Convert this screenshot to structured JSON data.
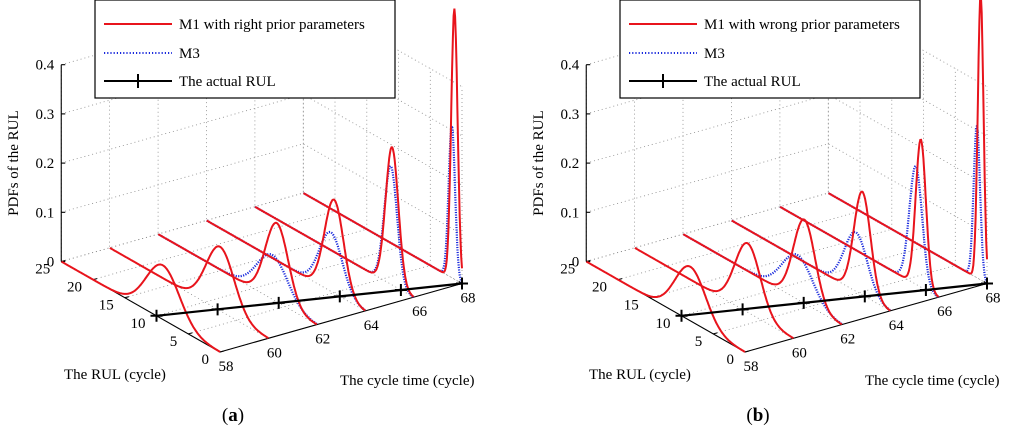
{
  "chart_data": [
    {
      "type": "line",
      "panel_label": "a",
      "xlabel": "The cycle time (cycle)",
      "ylabel": "The RUL (cycle)",
      "zlabel": "PDFs of the RUL",
      "x_ticks": [
        "58",
        "60",
        "62",
        "64",
        "66",
        "68"
      ],
      "y_ticks": [
        "0",
        "5",
        "10",
        "15",
        "20",
        "25"
      ],
      "z_ticks": [
        "0",
        "0.1",
        "0.2",
        "0.3",
        "0.4"
      ],
      "xlim": [
        58,
        68
      ],
      "ylim": [
        0,
        25
      ],
      "zlim": [
        0,
        0.4
      ],
      "legend": {
        "position": "top",
        "entries": [
          "M1 with right prior parameters",
          "M3",
          "The actual RUL"
        ]
      },
      "colors": {
        "m1": "#e8141c",
        "m3": "#1a2adc",
        "actual": "#000000"
      },
      "series": [
        {
          "name": "M1 with right prior parameters",
          "style": "solid",
          "curves": [
            {
              "t": 58,
              "mean": 9.0,
              "sd": 2.6,
              "peak": 0.11
            },
            {
              "t": 60,
              "mean": 7.6,
              "sd": 2.2,
              "peak": 0.13
            },
            {
              "t": 62,
              "mean": 6.3,
              "sd": 1.8,
              "peak": 0.16
            },
            {
              "t": 64,
              "mean": 4.9,
              "sd": 1.5,
              "peak": 0.19
            },
            {
              "t": 66,
              "mean": 3.4,
              "sd": 1.0,
              "peak": 0.28
            },
            {
              "t": 68,
              "mean": 1.2,
              "sd": 0.5,
              "peak": 0.55
            }
          ]
        },
        {
          "name": "M3",
          "style": "dotted",
          "curves": [
            {
              "t": 62,
              "mean": 7.0,
              "sd": 2.4,
              "peak": 0.09
            },
            {
              "t": 64,
              "mean": 5.4,
              "sd": 1.8,
              "peak": 0.12
            },
            {
              "t": 66,
              "mean": 3.6,
              "sd": 1.0,
              "peak": 0.24
            },
            {
              "t": 68,
              "mean": 1.6,
              "sd": 0.5,
              "peak": 0.31
            }
          ]
        },
        {
          "name": "The actual RUL",
          "style": "solid-plus",
          "points": [
            {
              "t": 58,
              "rul": 10
            },
            {
              "t": 60,
              "rul": 8
            },
            {
              "t": 62,
              "rul": 6
            },
            {
              "t": 64,
              "rul": 4
            },
            {
              "t": 66,
              "rul": 2
            },
            {
              "t": 68,
              "rul": 0
            }
          ]
        }
      ]
    },
    {
      "type": "line",
      "panel_label": "b",
      "xlabel": "The cycle time (cycle)",
      "ylabel": "The RUL (cycle)",
      "zlabel": "PDFs of the RUL",
      "x_ticks": [
        "58",
        "60",
        "62",
        "64",
        "66",
        "68"
      ],
      "y_ticks": [
        "0",
        "5",
        "10",
        "15",
        "20",
        "25"
      ],
      "z_ticks": [
        "0",
        "0.1",
        "0.2",
        "0.3",
        "0.4"
      ],
      "xlim": [
        58,
        68
      ],
      "ylim": [
        0,
        25
      ],
      "zlim": [
        0,
        0.4
      ],
      "legend": {
        "position": "top",
        "entries": [
          "M1 with wrong prior parameters",
          "M3",
          "The actual RUL"
        ]
      },
      "colors": {
        "m1": "#e8141c",
        "m3": "#1a2adc",
        "actual": "#000000"
      },
      "series": [
        {
          "name": "M1 with wrong prior parameters",
          "style": "solid",
          "curves": [
            {
              "t": 58,
              "mean": 8.6,
              "sd": 2.4,
              "peak": 0.11
            },
            {
              "t": 60,
              "mean": 7.2,
              "sd": 2.0,
              "peak": 0.14
            },
            {
              "t": 62,
              "mean": 5.9,
              "sd": 1.7,
              "peak": 0.17
            },
            {
              "t": 64,
              "mean": 4.4,
              "sd": 1.3,
              "peak": 0.21
            },
            {
              "t": 66,
              "mean": 2.8,
              "sd": 0.8,
              "peak": 0.3
            },
            {
              "t": 68,
              "mean": 1.0,
              "sd": 0.45,
              "peak": 0.58
            }
          ]
        },
        {
          "name": "M3",
          "style": "dotted",
          "curves": [
            {
              "t": 62,
              "mean": 7.0,
              "sd": 2.4,
              "peak": 0.09
            },
            {
              "t": 64,
              "mean": 5.4,
              "sd": 1.8,
              "peak": 0.12
            },
            {
              "t": 66,
              "mean": 3.6,
              "sd": 1.0,
              "peak": 0.24
            },
            {
              "t": 68,
              "mean": 1.6,
              "sd": 0.5,
              "peak": 0.31
            }
          ]
        },
        {
          "name": "The actual RUL",
          "style": "solid-plus",
          "points": [
            {
              "t": 58,
              "rul": 10
            },
            {
              "t": 60,
              "rul": 8
            },
            {
              "t": 62,
              "rul": 6
            },
            {
              "t": 64,
              "rul": 4
            },
            {
              "t": 66,
              "rul": 2
            },
            {
              "t": 68,
              "rul": 0
            }
          ]
        }
      ]
    }
  ]
}
